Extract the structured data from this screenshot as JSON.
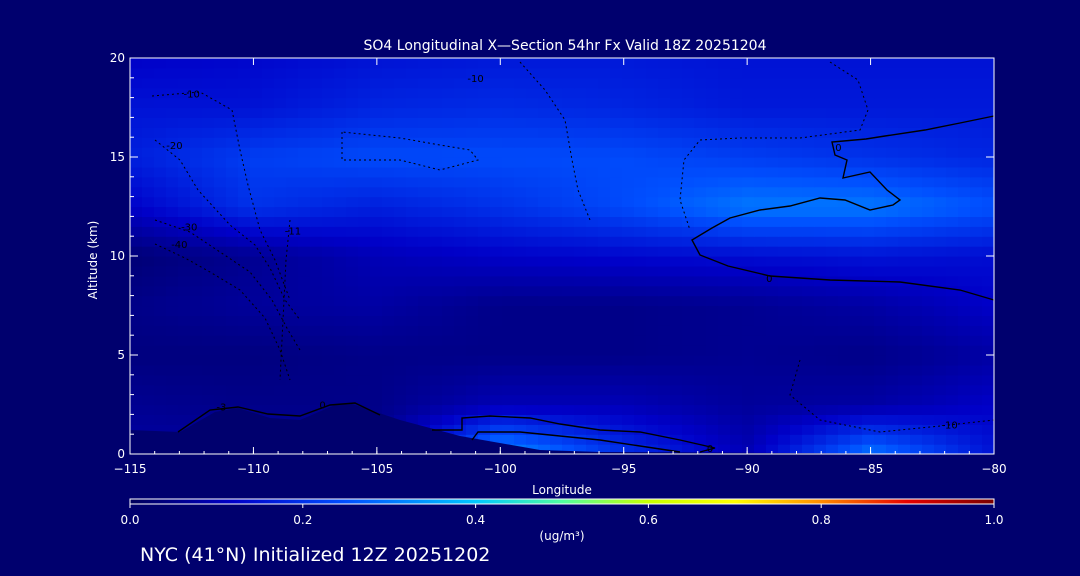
{
  "colors": {
    "background": "#00006e",
    "text": "#ffffff",
    "colormap": [
      "#000064",
      "#0000b4",
      "#0050ff",
      "#00c8ff",
      "#ffff00",
      "#ff8c00",
      "#c80000",
      "#780000"
    ]
  },
  "chart_data": {
    "type": "heatmap",
    "title": "SO4 Longitudinal X—Section 54hr  Fx Valid 18Z 20251204",
    "xlabel": "Longitude",
    "ylabel": "Altitude (km)",
    "xlim": [
      -115,
      -80
    ],
    "ylim": [
      0,
      20
    ],
    "x_ticks": [
      "-115",
      "-110",
      "-105",
      "-100",
      "-95",
      "-90",
      "-85",
      "-80"
    ],
    "y_ticks": [
      "0",
      "5",
      "10",
      "15",
      "20"
    ],
    "field": {
      "longitudes": [
        -115,
        -110,
        -105,
        -100,
        -95,
        -90,
        -85,
        -80
      ],
      "altitudes": [
        0,
        2.5,
        5,
        7.5,
        10,
        12.5,
        15,
        17.5,
        20
      ],
      "values": [
        [
          0.08,
          0.08,
          0.06,
          0.34,
          0.2,
          0.1,
          0.3,
          0.15
        ],
        [
          0.06,
          0.05,
          0.05,
          0.1,
          0.1,
          0.07,
          0.08,
          0.12
        ],
        [
          0.04,
          0.04,
          0.05,
          0.05,
          0.05,
          0.06,
          0.05,
          0.08
        ],
        [
          0.05,
          0.07,
          0.08,
          0.05,
          0.05,
          0.06,
          0.08,
          0.12
        ],
        [
          0.03,
          0.06,
          0.1,
          0.12,
          0.13,
          0.14,
          0.15,
          0.14
        ],
        [
          0.12,
          0.2,
          0.17,
          0.2,
          0.24,
          0.3,
          0.3,
          0.25
        ],
        [
          0.17,
          0.22,
          0.24,
          0.24,
          0.24,
          0.22,
          0.2,
          0.18
        ],
        [
          0.15,
          0.15,
          0.18,
          0.19,
          0.18,
          0.16,
          0.16,
          0.16
        ],
        [
          0.12,
          0.13,
          0.15,
          0.16,
          0.16,
          0.15,
          0.15,
          0.15
        ]
      ]
    },
    "contour_labels": [
      "-10",
      "-10",
      "-20",
      "-30",
      "-40",
      "-11",
      "0",
      "0",
      "-3",
      "0",
      "0",
      "-10"
    ],
    "colorbar": {
      "range": [
        0.0,
        1.0
      ],
      "ticks": [
        "0.0",
        "0.2",
        "0.4",
        "0.6",
        "0.8",
        "1.0"
      ],
      "units": "(ug/m³)"
    },
    "footer": "NYC (41°N) Initialized 12Z 20251202"
  }
}
